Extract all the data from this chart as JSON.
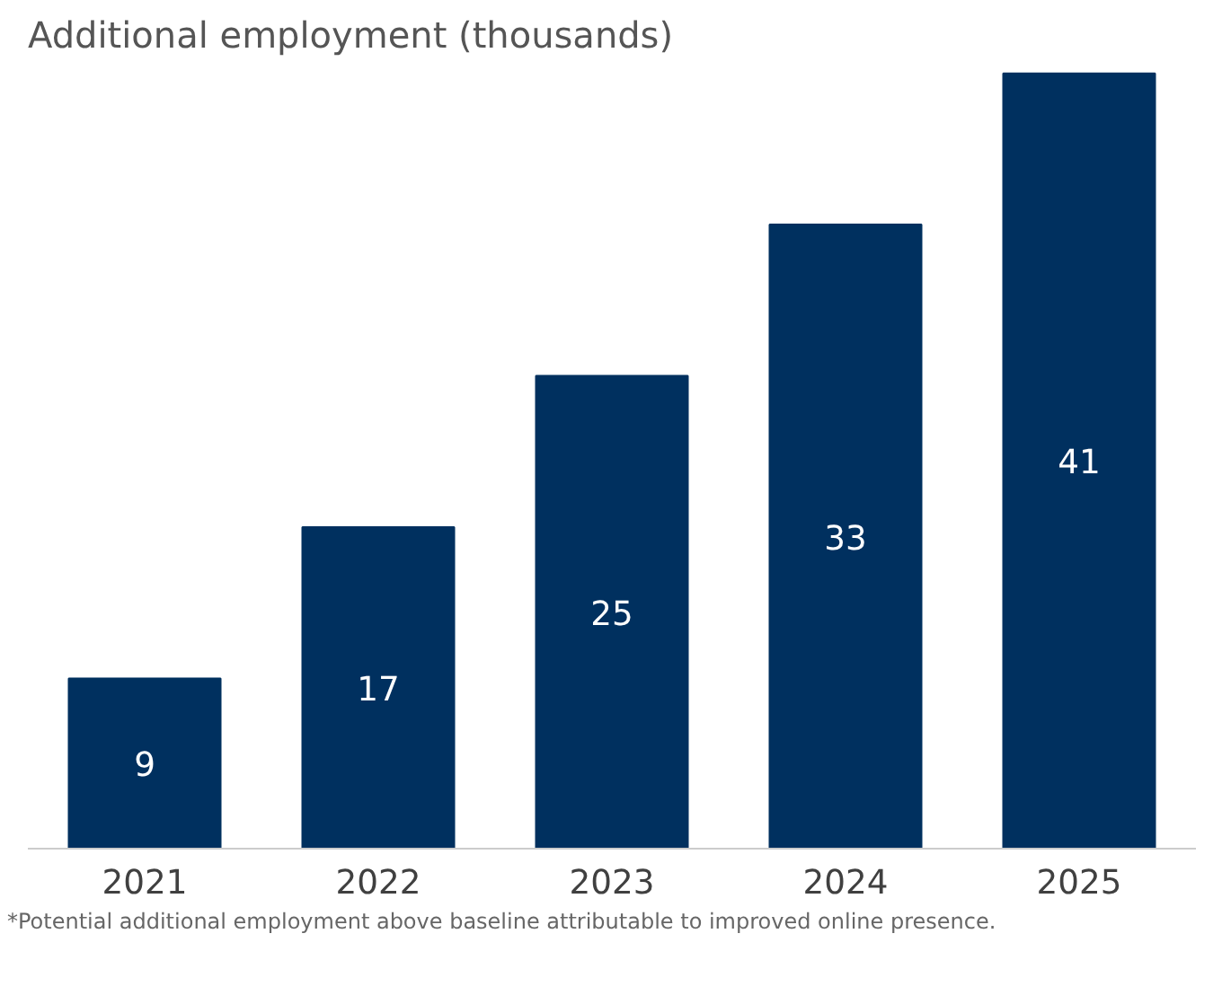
{
  "chart_data": {
    "type": "bar",
    "title": "Additional employment (thousands)",
    "categories": [
      "2021",
      "2022",
      "2023",
      "2024",
      "2025"
    ],
    "values": [
      9,
      17,
      25,
      33,
      41
    ],
    "color": "#00305f",
    "data_labels": true,
    "grid": false,
    "tick_labels": "x",
    "annotations": [
      "*Potential additional employment above baseline attributable to improved online presence."
    ]
  }
}
